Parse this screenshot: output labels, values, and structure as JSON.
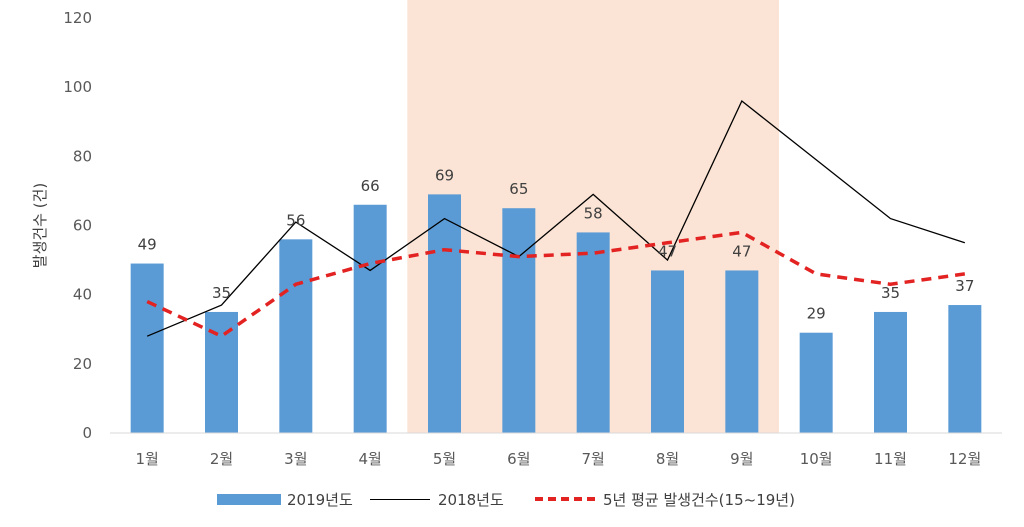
{
  "chart_data": {
    "type": "bar",
    "categories": [
      "1월",
      "2월",
      "3월",
      "4월",
      "5월",
      "6월",
      "7월",
      "8월",
      "9월",
      "10월",
      "11월",
      "12월"
    ],
    "series": [
      {
        "name": "2019년도",
        "type": "bar",
        "values": [
          49,
          35,
          56,
          66,
          69,
          65,
          58,
          47,
          47,
          29,
          35,
          37
        ],
        "color": "#5b9bd5",
        "data_labels": true
      },
      {
        "name": "2018년도",
        "type": "line",
        "values": [
          28,
          37,
          61,
          47,
          62,
          51,
          69,
          50,
          96,
          79,
          62,
          55
        ],
        "color": "#000000"
      },
      {
        "name": "5년 평균 발생건수(15~19년)",
        "type": "line",
        "style": "dashed",
        "values": [
          38,
          28,
          43,
          49,
          53,
          51,
          52,
          55,
          58,
          46,
          43,
          46
        ],
        "color": "#e32222"
      }
    ],
    "ylabel": "발생건수 (건)",
    "ylim": [
      0,
      120
    ],
    "yticks": [
      0,
      20,
      40,
      60,
      80,
      100,
      120
    ],
    "highlight": {
      "from": "5월",
      "to": "9월",
      "color": "#fbe4d5"
    },
    "grid": false,
    "legend": "bottom"
  }
}
